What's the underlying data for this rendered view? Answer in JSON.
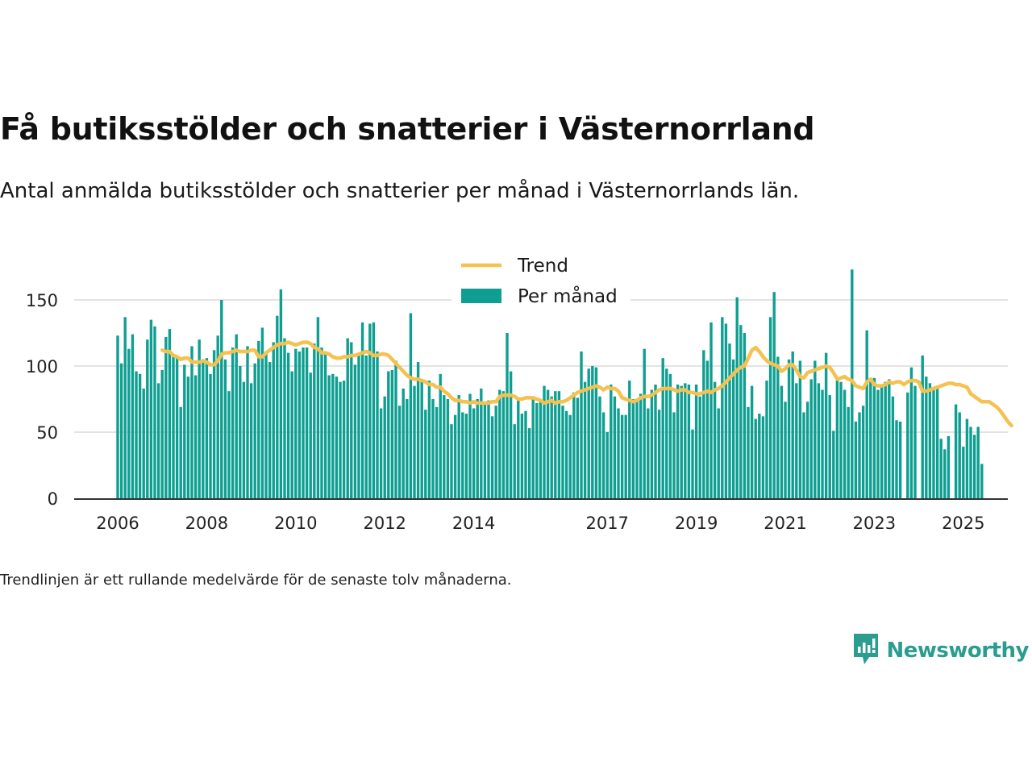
{
  "chart_data": {
    "type": "bar",
    "title": "Få butiksstölder och snatterier i Västernorrland",
    "subtitle": "Antal anmälda butiksstölder och snatterier per månad i Västernorrlands län.",
    "note": "Trendlinjen är ett rullande medelvärde för de senaste tolv månaderna.",
    "xlabel": "",
    "ylabel": "",
    "ylim": [
      0,
      180
    ],
    "yticks": [
      0,
      50,
      100,
      150
    ],
    "xticks": [
      "2006",
      "2008",
      "2010",
      "2012",
      "2014",
      "2017",
      "2019",
      "2021",
      "2023",
      "2025"
    ],
    "grid": true,
    "legend_placement": "top-center",
    "x_start": "2006-01",
    "series": [
      {
        "name": "Per månad",
        "kind": "bar",
        "color": "#0e9f92",
        "values": [
          123,
          102,
          137,
          113,
          124,
          96,
          94,
          83,
          120,
          135,
          130,
          87,
          97,
          122,
          128,
          108,
          106,
          69,
          101,
          92,
          115,
          93,
          120,
          103,
          106,
          94,
          112,
          123,
          150,
          105,
          81,
          114,
          124,
          100,
          88,
          115,
          87,
          102,
          119,
          129,
          109,
          103,
          118,
          138,
          158,
          121,
          110,
          96,
          113,
          111,
          114,
          114,
          95,
          117,
          137,
          114,
          109,
          93,
          94,
          92,
          88,
          89,
          121,
          118,
          101,
          110,
          133,
          108,
          132,
          133,
          111,
          68,
          77,
          96,
          97,
          104,
          70,
          83,
          75,
          140,
          85,
          103,
          88,
          67,
          89,
          75,
          69,
          94,
          78,
          75,
          56,
          63,
          78,
          65,
          64,
          79,
          68,
          75,
          83,
          71,
          74,
          62,
          70,
          82,
          81,
          125,
          96,
          56,
          74,
          64,
          66,
          53,
          75,
          72,
          75,
          85,
          82,
          77,
          81,
          81,
          70,
          66,
          63,
          80,
          76,
          111,
          88,
          98,
          100,
          99,
          77,
          65,
          50,
          86,
          77,
          68,
          63,
          63,
          89,
          75,
          75,
          79,
          113,
          68,
          82,
          86,
          67,
          106,
          98,
          94,
          65,
          86,
          85,
          87,
          86,
          52,
          86,
          77,
          112,
          104,
          133,
          88,
          68,
          137,
          132,
          117,
          105,
          152,
          131,
          125,
          69,
          85,
          60,
          64,
          62,
          89,
          137,
          156,
          107,
          85,
          73,
          105,
          111,
          87,
          104,
          65,
          73,
          90,
          104,
          87,
          82,
          110,
          78,
          51,
          90,
          88,
          82,
          69,
          173,
          58,
          65,
          70,
          127,
          91,
          91,
          82,
          85,
          88,
          90,
          77,
          59,
          58,
          0,
          80,
          99,
          85,
          0,
          108,
          92,
          87,
          84,
          85,
          45,
          37,
          47,
          0,
          71,
          65,
          39,
          60,
          54,
          48,
          54,
          26
        ]
      },
      {
        "name": "Trend",
        "kind": "line",
        "color": "#f5c150",
        "start_index": 12,
        "values": [
          112,
          111,
          111,
          108,
          107,
          105,
          106,
          106,
          103,
          103,
          103,
          104,
          103,
          101,
          101,
          104,
          109,
          110,
          110,
          111,
          112,
          111,
          111,
          111,
          112,
          112,
          107,
          107,
          110,
          112,
          114,
          116,
          117,
          117,
          118,
          117,
          116,
          117,
          118,
          118,
          117,
          114,
          113,
          110,
          110,
          109,
          107,
          106,
          106,
          107,
          107,
          108,
          108,
          109,
          110,
          111,
          110,
          108,
          108,
          109,
          109,
          108,
          105,
          102,
          99,
          96,
          93,
          91,
          90,
          90,
          89,
          88,
          86,
          86,
          84,
          84,
          81,
          79,
          76,
          74,
          74,
          73,
          73,
          72,
          73,
          72,
          72,
          72,
          72,
          73,
          73,
          77,
          78,
          78,
          78,
          77,
          75,
          75,
          76,
          76,
          76,
          75,
          74,
          72,
          73,
          74,
          72,
          73,
          73,
          74,
          76,
          78,
          80,
          81,
          82,
          83,
          84,
          85,
          84,
          82,
          84,
          83,
          83,
          81,
          76,
          75,
          74,
          73,
          74,
          76,
          77,
          77,
          78,
          80,
          82,
          83,
          83,
          83,
          82,
          81,
          82,
          82,
          80,
          80,
          79,
          79,
          80,
          81,
          80,
          82,
          83,
          85,
          88,
          91,
          94,
          97,
          99,
          100,
          106,
          112,
          114,
          111,
          107,
          104,
          102,
          101,
          100,
          96,
          98,
          101,
          101,
          97,
          92,
          91,
          95,
          96,
          97,
          98,
          99,
          100,
          99,
          95,
          90,
          91,
          92,
          90,
          89,
          85,
          84,
          83,
          88,
          90,
          86,
          85,
          85,
          86,
          88,
          87,
          88,
          88,
          86,
          88,
          89,
          89,
          88,
          81,
          81,
          82,
          83,
          84,
          85,
          86,
          87,
          87,
          86,
          86,
          85,
          84,
          79,
          77,
          75,
          73,
          73,
          73,
          71,
          69,
          66,
          62,
          58,
          55
        ]
      }
    ]
  },
  "brand": {
    "name": "Newsworthy",
    "logo_icon": "newsworthy-logo-icon"
  }
}
